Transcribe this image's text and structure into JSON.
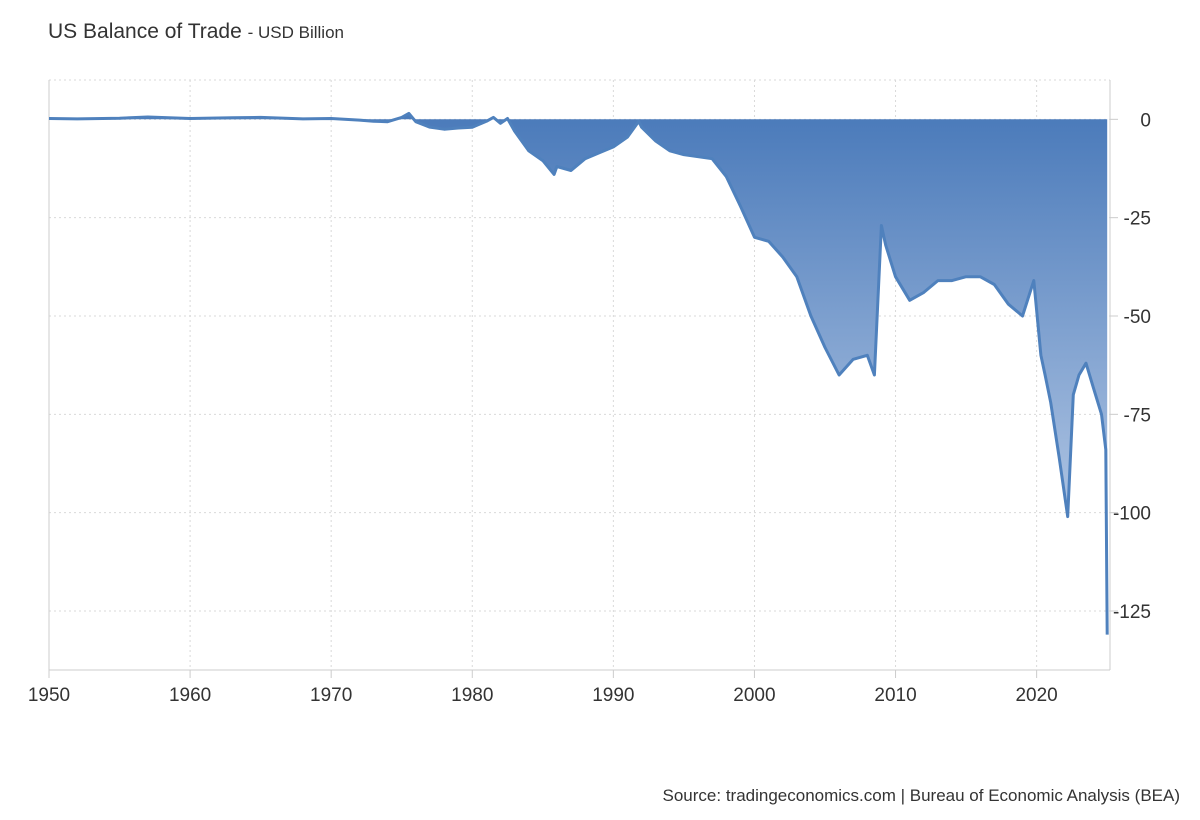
{
  "header": {
    "title": "US Balance of Trade",
    "subtitle": "- USD Billion"
  },
  "footer": {
    "source": "Source: tradingeconomics.com | Bureau of Economic Analysis (BEA)"
  },
  "colors": {
    "line": "#4f81bd",
    "area_top": "#4a7aba",
    "area_bottom": "#cbd9ee",
    "grid": "#d9d9d9"
  },
  "chart_data": {
    "type": "area",
    "title": "US Balance of Trade",
    "subtitle": "USD Billion",
    "xlabel": "",
    "ylabel": "",
    "xlim": [
      1950,
      2025.2
    ],
    "ylim": [
      -140,
      10
    ],
    "x_ticks": [
      1950,
      1960,
      1970,
      1980,
      1990,
      2000,
      2010,
      2020
    ],
    "y_ticks": [
      0,
      -25,
      -50,
      -75,
      -100,
      -125
    ],
    "grid": true,
    "y_axis_side": "right",
    "series": [
      {
        "x": [
          1950,
          1952,
          1955,
          1957,
          1960,
          1963,
          1965,
          1968,
          1970,
          1972,
          1973,
          1974,
          1975,
          1975.5,
          1976,
          1977,
          1978,
          1979,
          1980,
          1981,
          1981.5,
          1982,
          1982.5,
          1983,
          1984,
          1985,
          1985.8,
          1986,
          1987,
          1988,
          1989,
          1990,
          1991,
          1991.8,
          1992,
          1993,
          1994,
          1995,
          1996,
          1997,
          1998,
          1999,
          2000,
          2001,
          2002,
          2003,
          2004,
          2005,
          2006,
          2007,
          2008,
          2008.5,
          2009,
          2009.3,
          2010,
          2011,
          2012,
          2013,
          2014,
          2015,
          2016,
          2017,
          2018,
          2019,
          2019.8,
          2020.3,
          2020.6,
          2021,
          2021.6,
          2022.2,
          2022.6,
          2023,
          2023.5,
          2024,
          2024.6,
          2024.9,
          2025.0
        ],
        "y": [
          0.2,
          0.1,
          0.3,
          0.6,
          0.2,
          0.4,
          0.5,
          0.1,
          0.2,
          -0.2,
          -0.5,
          -0.6,
          0.5,
          1.5,
          -0.6,
          -2.0,
          -2.5,
          -2.2,
          -2.0,
          -0.5,
          0.5,
          -1.0,
          0.2,
          -3.0,
          -8.0,
          -10.5,
          -14.0,
          -12.0,
          -13.0,
          -10.0,
          -8.5,
          -7.0,
          -4.5,
          -0.5,
          -2.0,
          -5.5,
          -8.0,
          -9.0,
          -9.5,
          -10.0,
          -14.5,
          -22.0,
          -30.0,
          -31.0,
          -35.0,
          -40.0,
          -50.0,
          -58.0,
          -65.0,
          -61.0,
          -60.0,
          -65.0,
          -27.0,
          -32.0,
          -40.0,
          -46.0,
          -44.0,
          -41.0,
          -41.0,
          -40.0,
          -40.0,
          -42.0,
          -47.0,
          -50.0,
          -41.0,
          -60.0,
          -65.0,
          -72.0,
          -86.0,
          -101.0,
          -70.0,
          -65.0,
          -62.0,
          -68.0,
          -75.0,
          -84.0,
          -131.0
        ]
      }
    ]
  }
}
